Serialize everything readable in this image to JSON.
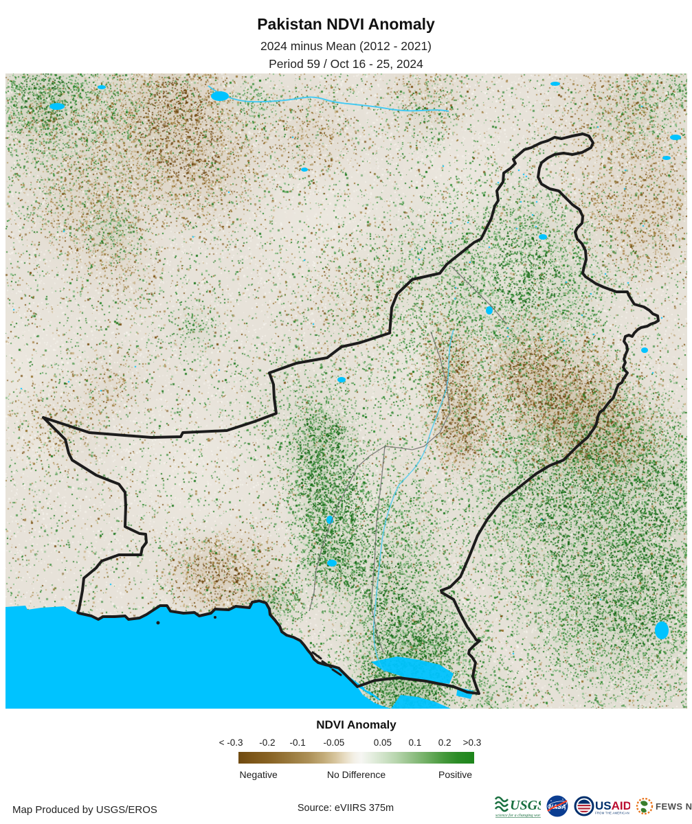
{
  "header": {
    "title": "Pakistan NDVI Anomaly",
    "subtitle_period": "2024 minus Mean (2012 - 2021)",
    "subtitle_dates": "Period 59 / Oct 16 - 25, 2024"
  },
  "legend": {
    "title": "NDVI Anomaly",
    "ticks": [
      {
        "label": "< -0.3",
        "pos_pct": -3.2
      },
      {
        "label": "-0.2",
        "pos_pct": 12.2
      },
      {
        "label": "-0.1",
        "pos_pct": 25.1
      },
      {
        "label": "-0.05",
        "pos_pct": 40.5
      },
      {
        "label": "0.05",
        "pos_pct": 61.2
      },
      {
        "label": "0.1",
        "pos_pct": 74.9
      },
      {
        "label": "0.2",
        "pos_pct": 87.5
      },
      {
        "label": ">0.3",
        "pos_pct": 99.1
      }
    ],
    "categories": [
      "Negative",
      "No Difference",
      "Positive"
    ],
    "colors": {
      "negative_end": "#6f4a10",
      "no_difference": "#f6f6f3",
      "positive_end": "#1d851b"
    }
  },
  "map": {
    "region": "Pakistan",
    "sea_color": "#00c3ff",
    "boundary_color": "#1c1c1c",
    "admin_boundary_color": "#6b6b6b",
    "anomaly_positive_color": "#1f7a1f",
    "anomaly_negative_color": "#7a5215"
  },
  "footer": {
    "credit": "Map Produced by USGS/EROS",
    "source": "Source: eVIIRS 375m",
    "logos": {
      "usgs": {
        "name": "USGS",
        "tagline": "science for a changing world"
      },
      "nasa": {
        "name": "NASA"
      },
      "usaid": {
        "name": "USAID",
        "tagline": "FROM THE AMERICAN PEOPLE"
      },
      "fewsnet": {
        "name": "FEWS NET"
      }
    }
  }
}
